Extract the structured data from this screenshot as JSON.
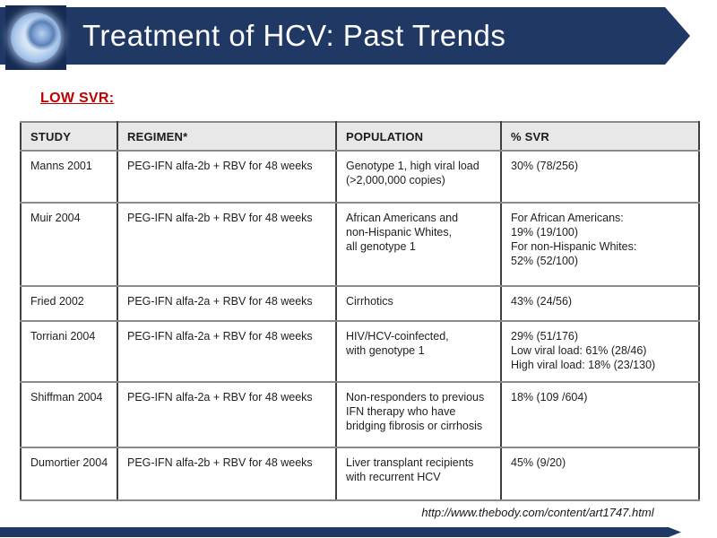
{
  "slide": {
    "title": "Treatment of HCV: Past Trends",
    "section_label": "LOW SVR:",
    "source_url": "http://www.thebody.com/content/art1747.html"
  },
  "colors": {
    "header_navy": "#1F3864",
    "logo_navy": "#162B52",
    "accent_red": "#C00000",
    "table_header_bg": "#E8E8E8",
    "border_dark": "#3F3F3F",
    "border_mid": "#8A8A8A"
  },
  "icons": {
    "logo": "hcv-virus-micrograph-icon"
  },
  "table": {
    "columns": [
      "STUDY",
      "REGIMEN*",
      "POPULATION",
      "% SVR"
    ],
    "rows": [
      {
        "study": "Manns 2001",
        "regimen": "PEG-IFN alfa-2b + RBV for 48 weeks",
        "population": "Genotype 1, high viral load\n(>2,000,000 copies)",
        "svr": "30% (78/256)"
      },
      {
        "study": "Muir 2004",
        "regimen": "PEG-IFN alfa-2b + RBV for 48 weeks",
        "population": "African Americans and\nnon-Hispanic Whites,\nall genotype 1",
        "svr": "For African Americans:\n19% (19/100)\nFor non-Hispanic Whites:\n52% (52/100)"
      },
      {
        "study": "Fried 2002",
        "regimen": "PEG-IFN alfa-2a + RBV for 48 weeks",
        "population": "Cirrhotics",
        "svr": "43% (24/56)"
      },
      {
        "study": "Torriani 2004",
        "regimen": "PEG-IFN alfa-2a + RBV for 48 weeks",
        "population": "HIV/HCV-coinfected,\nwith genotype 1",
        "svr": "29% (51/176)\nLow viral load: 61% (28/46)\nHigh viral load: 18% (23/130)"
      },
      {
        "study": "Shiffman 2004",
        "regimen": "PEG-IFN alfa-2a + RBV for 48 weeks",
        "population": "Non-responders to previous\nIFN therapy who have\nbridging fibrosis or cirrhosis",
        "svr": "18% (109 /604)"
      },
      {
        "study": "Dumortier 2004",
        "regimen": "PEG-IFN alfa-2b + RBV for 48 weeks",
        "population": "Liver transplant recipients\nwith recurrent HCV",
        "svr": "45% (9/20)"
      }
    ]
  }
}
